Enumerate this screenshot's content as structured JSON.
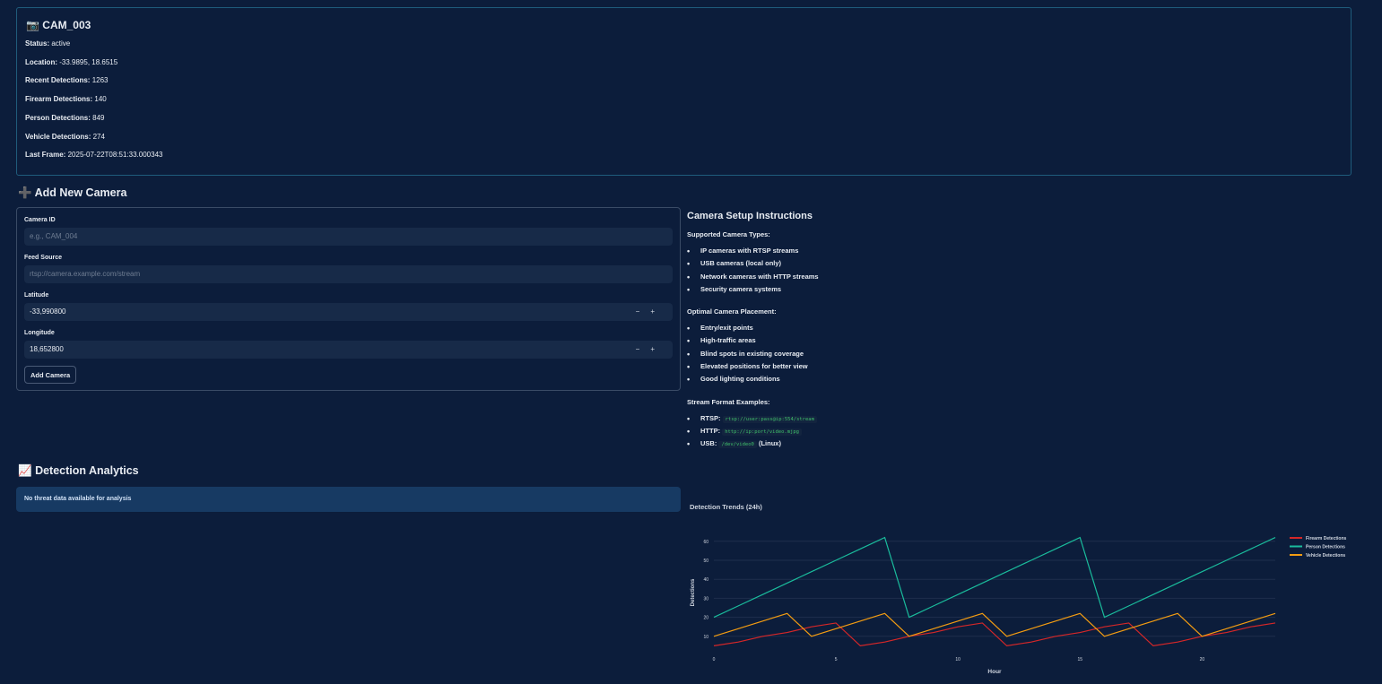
{
  "camera_card": {
    "icon": "camera-icon",
    "title": "CAM_003",
    "fields": [
      {
        "label": "Status:",
        "value": "active"
      },
      {
        "label": "Location:",
        "value": "-33.9895, 18.6515"
      },
      {
        "label": "Recent Detections:",
        "value": "1263"
      },
      {
        "label": "Firearm Detections:",
        "value": "140"
      },
      {
        "label": "Person Detections:",
        "value": "849"
      },
      {
        "label": "Vehicle Detections:",
        "value": "274"
      },
      {
        "label": "Last Frame:",
        "value": "2025-07-22T08:51:33.000343"
      }
    ]
  },
  "add_camera": {
    "title": "Add New Camera",
    "icon": "plus-icon",
    "camera_id": {
      "label": "Camera ID",
      "placeholder": "e.g., CAM_004"
    },
    "feed_source": {
      "label": "Feed Source",
      "placeholder": "rtsp://camera.example.com/stream"
    },
    "latitude": {
      "label": "Latitude",
      "value": "-33,990800"
    },
    "longitude": {
      "label": "Longitude",
      "value": "18,652800"
    },
    "stepper": {
      "minus": "−",
      "plus": "+"
    },
    "button": "Add Camera"
  },
  "instructions": {
    "title": "Camera Setup Instructions",
    "types_title": "Supported Camera Types:",
    "types": [
      "IP cameras with RTSP streams",
      "USB cameras (local only)",
      "Network cameras with HTTP streams",
      "Security camera systems"
    ],
    "placement_title": "Optimal Camera Placement:",
    "placement": [
      "Entry/exit points",
      "High-traffic areas",
      "Blind spots in existing coverage",
      "Elevated positions for better view",
      "Good lighting conditions"
    ],
    "formats_title": "Stream Format Examples:",
    "formats": [
      {
        "label": "RTSP:",
        "code": "rtsp://user:pass@ip:554/stream",
        "suffix": ""
      },
      {
        "label": "HTTP:",
        "code": "http://ip:port/video.mjpg",
        "suffix": ""
      },
      {
        "label": "USB:",
        "code": "/dev/video0",
        "suffix": "(Linux)"
      }
    ]
  },
  "analytics": {
    "title": "Detection Analytics",
    "icon": "chart-increasing-icon",
    "info": "No threat data available for analysis"
  },
  "chart_data": {
    "type": "line",
    "title": "Detection Trends (24h)",
    "xlabel": "Hour",
    "ylabel": "Detections",
    "x": [
      0,
      1,
      2,
      3,
      4,
      5,
      6,
      7,
      8,
      9,
      10,
      11,
      12,
      13,
      14,
      15,
      16,
      17,
      18,
      19,
      20,
      21,
      22,
      23
    ],
    "xlim": [
      0,
      23
    ],
    "ylim": [
      0,
      65
    ],
    "xticks": [
      0,
      5,
      10,
      15,
      20
    ],
    "yticks": [
      10,
      20,
      30,
      40,
      50,
      60
    ],
    "grid": true,
    "legend": "top-right",
    "series": [
      {
        "name": "Firearm Detections",
        "color": "#d62728",
        "values": [
          5,
          7,
          10,
          12,
          15,
          17,
          5,
          7,
          10,
          12,
          15,
          17,
          5,
          7,
          10,
          12,
          15,
          17,
          5,
          7,
          10,
          12,
          15,
          17
        ]
      },
      {
        "name": "Person Detections",
        "color": "#1abc9c",
        "values": [
          20,
          26,
          32,
          38,
          44,
          50,
          56,
          62,
          20,
          26,
          32,
          38,
          44,
          50,
          56,
          62,
          20,
          26,
          32,
          38,
          44,
          50,
          56,
          62
        ]
      },
      {
        "name": "Vehicle Detections",
        "color": "#f39c12",
        "values": [
          10,
          14,
          18,
          22,
          10,
          14,
          18,
          22,
          10,
          14,
          18,
          22,
          10,
          14,
          18,
          22,
          10,
          14,
          18,
          22,
          10,
          14,
          18,
          22
        ]
      }
    ]
  }
}
